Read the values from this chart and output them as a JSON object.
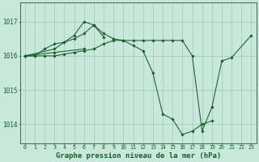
{
  "background_color": "#c8e8dc",
  "grid_color": "#a0c8b8",
  "line_color": "#1a5c2a",
  "xlabel": "Graphe pression niveau de la mer (hPa)",
  "xlabel_fontsize": 6.5,
  "ylim": [
    1013.45,
    1017.55
  ],
  "xlim": [
    -0.5,
    23.5
  ],
  "yticks": [
    1014,
    1015,
    1016,
    1017
  ],
  "xtick_labels": [
    "0",
    "1",
    "2",
    "3",
    "4",
    "5",
    "6",
    "7",
    "8",
    "9",
    "10",
    "11",
    "12",
    "13",
    "14",
    "15",
    "16",
    "17",
    "18",
    "19",
    "20",
    "21",
    "22",
    "23"
  ],
  "series": [
    {
      "x": [
        0,
        1,
        2,
        3,
        4,
        5,
        6,
        7,
        8,
        9,
        10,
        11,
        12,
        13,
        14,
        15,
        16,
        17,
        18,
        19
      ],
      "y": [
        1016.0,
        1016.0,
        1016.2,
        1016.35,
        1016.4,
        1016.6,
        1017.0,
        1016.9,
        1016.65,
        1016.5,
        1016.45,
        1016.3,
        1016.15,
        1015.5,
        1014.3,
        1014.15,
        1013.7,
        1013.8,
        1014.0,
        1014.1
      ]
    },
    {
      "comment": "short arc: 0, 3-8",
      "x": [
        0,
        3,
        4,
        5,
        6,
        7,
        8
      ],
      "y": [
        1016.0,
        1016.2,
        1016.4,
        1016.5,
        1016.65,
        1016.9,
        1016.55
      ]
    },
    {
      "x": [
        0,
        3,
        6
      ],
      "y": [
        1016.0,
        1016.1,
        1016.2
      ]
    },
    {
      "x": [
        0,
        1,
        2,
        3,
        4,
        5,
        6,
        7,
        8,
        9,
        10,
        11,
        12,
        13,
        14,
        15,
        16,
        17,
        18,
        19,
        20,
        21,
        23
      ],
      "y": [
        1016.0,
        1016.0,
        1016.0,
        1016.0,
        1016.05,
        1016.1,
        1016.15,
        1016.2,
        1016.35,
        1016.45,
        1016.45,
        1016.45,
        1016.45,
        1016.45,
        1016.45,
        1016.45,
        1016.45,
        1016.0,
        1013.8,
        1014.5,
        1015.85,
        1015.95,
        1016.6
      ]
    }
  ]
}
